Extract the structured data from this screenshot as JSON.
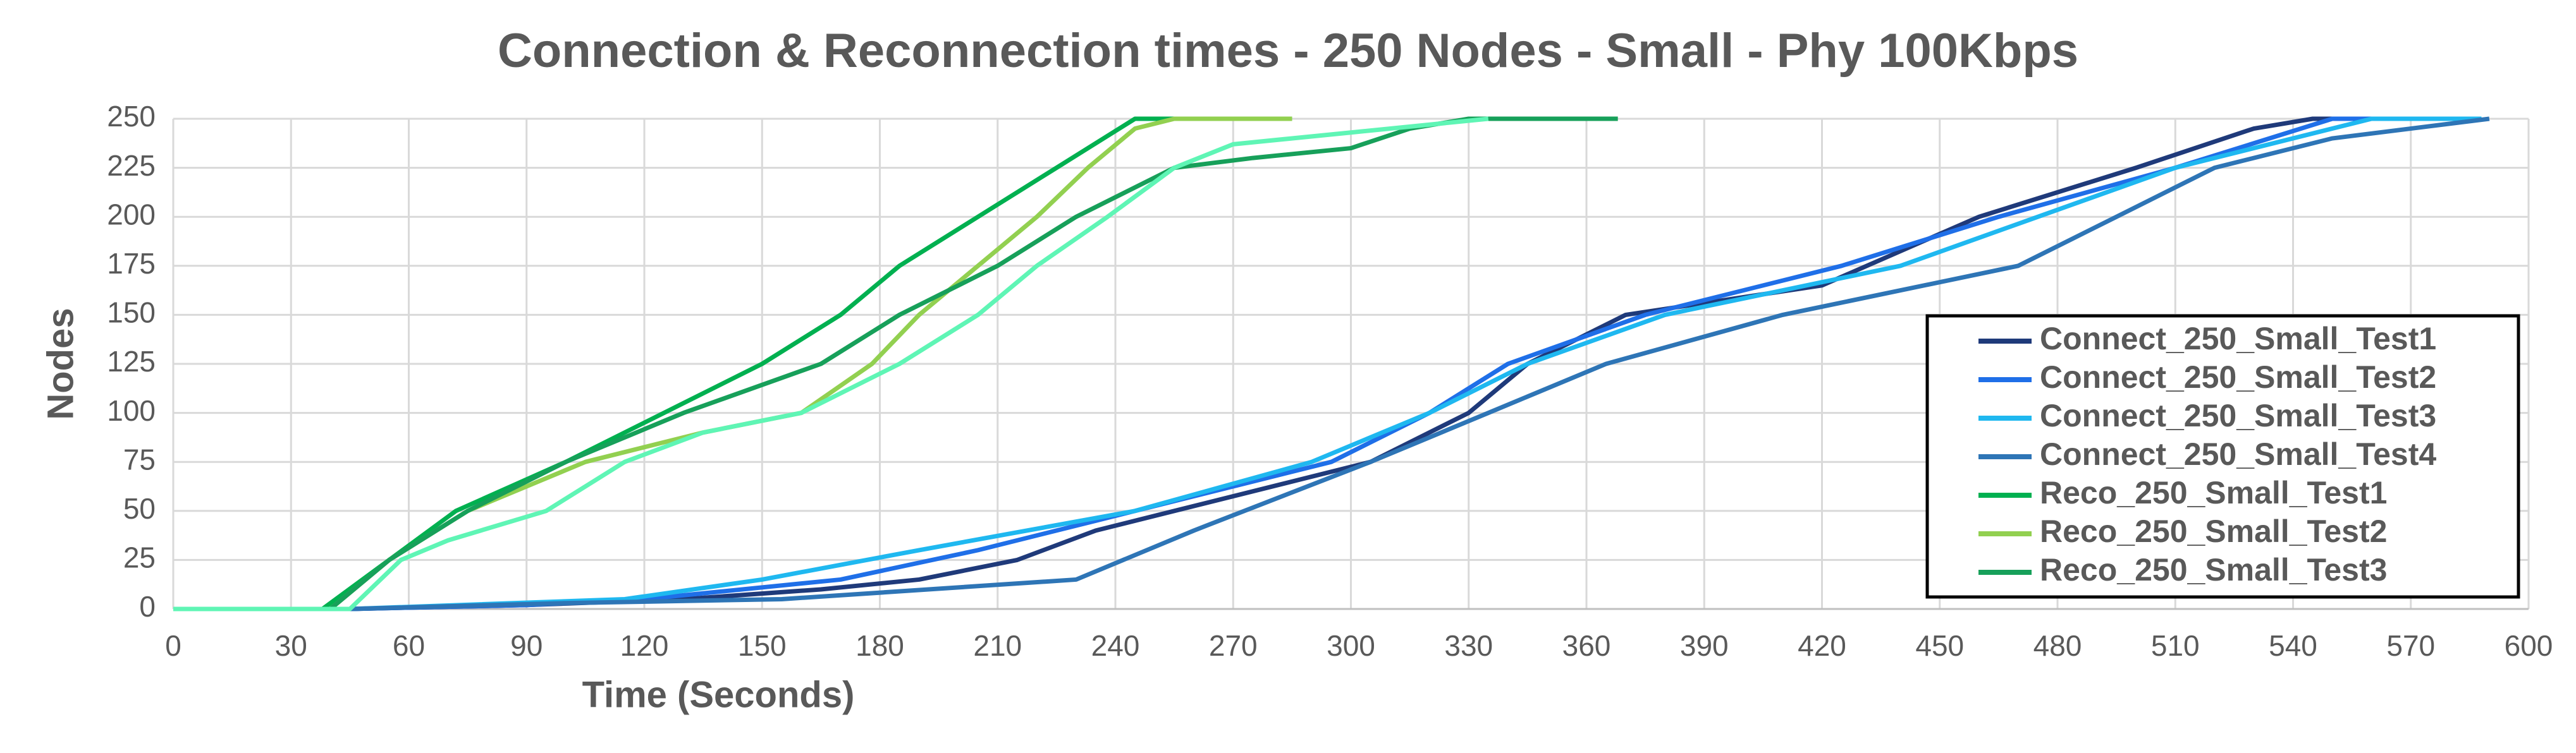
{
  "chart_data": {
    "type": "line",
    "title": "Connection & Reconnection times - 250 Nodes - Small - Phy 100Kbps",
    "x_label": "Time (Seconds)",
    "y_label": "Nodes",
    "xlim": [
      0,
      600
    ],
    "xticks": [
      0,
      30,
      60,
      90,
      120,
      150,
      180,
      210,
      240,
      270,
      300,
      330,
      360,
      390,
      420,
      450,
      480,
      510,
      540,
      570,
      600
    ],
    "ylim": [
      0,
      250
    ],
    "yticks": [
      0,
      25,
      50,
      75,
      100,
      125,
      150,
      175,
      200,
      225,
      250
    ],
    "grid": true,
    "legend": "lower right",
    "series": [
      {
        "name": "Connect_250_Small_Test1",
        "color": "#1f3a7a",
        "x": [
          0,
          45,
          90,
          130,
          165,
          190,
          215,
          235,
          255,
          305,
          330,
          345,
          370,
          420,
          460,
          500,
          530,
          545,
          556
        ],
        "values": [
          0,
          0,
          2,
          5,
          10,
          15,
          25,
          40,
          50,
          75,
          100,
          125,
          150,
          165,
          200,
          225,
          245,
          250,
          250
        ]
      },
      {
        "name": "Connect_250_Small_Test2",
        "color": "#1f6fe8",
        "x": [
          0,
          45,
          90,
          120,
          170,
          205,
          235,
          265,
          295,
          320,
          340,
          375,
          425,
          465,
          510,
          550,
          565
        ],
        "values": [
          0,
          0,
          2,
          5,
          15,
          30,
          45,
          60,
          75,
          100,
          125,
          150,
          175,
          200,
          225,
          250,
          250
        ]
      },
      {
        "name": "Connect_250_Small_Test3",
        "color": "#1fb8f0",
        "x": [
          0,
          45,
          115,
          150,
          190,
          245,
          290,
          320,
          345,
          380,
          440,
          475,
          510,
          560,
          588
        ],
        "values": [
          0,
          0,
          5,
          15,
          30,
          50,
          75,
          100,
          125,
          150,
          175,
          200,
          225,
          250,
          250
        ]
      },
      {
        "name": "Connect_250_Small_Test4",
        "color": "#2e75b6",
        "x": [
          0,
          45,
          100,
          155,
          230,
          260,
          305,
          335,
          365,
          410,
          470,
          495,
          520,
          550,
          590
        ],
        "values": [
          0,
          0,
          3,
          5,
          15,
          40,
          75,
          100,
          125,
          150,
          175,
          200,
          225,
          240,
          250
        ]
      },
      {
        "name": "Reco_250_Small_Test1",
        "color": "#00b050",
        "x": [
          0,
          38,
          55,
          72,
          100,
          125,
          150,
          170,
          185,
          205,
          225,
          245,
          285
        ],
        "values": [
          0,
          0,
          25,
          50,
          75,
          100,
          125,
          150,
          175,
          200,
          225,
          250,
          250
        ]
      },
      {
        "name": "Reco_250_Small_Test2",
        "color": "#92d050",
        "x": [
          0,
          40,
          55,
          75,
          105,
          135,
          160,
          178,
          190,
          205,
          220,
          233,
          245,
          255,
          285
        ],
        "values": [
          0,
          0,
          25,
          50,
          75,
          90,
          100,
          125,
          150,
          175,
          200,
          225,
          245,
          250,
          250
        ]
      },
      {
        "name": "Reco_250_Small_Test3",
        "color": "#17a05a",
        "x": [
          0,
          40,
          55,
          75,
          100,
          130,
          165,
          185,
          210,
          230,
          255,
          275,
          300,
          315,
          330,
          368
        ],
        "values": [
          0,
          0,
          25,
          50,
          75,
          100,
          125,
          150,
          175,
          200,
          225,
          230,
          235,
          245,
          250,
          250
        ]
      },
      {
        "color": "#5ff5b5",
        "x": [
          0,
          45,
          58,
          70,
          95,
          115,
          135,
          160,
          185,
          205,
          220,
          238,
          255,
          270,
          300,
          335
        ],
        "values": [
          0,
          0,
          25,
          35,
          50,
          75,
          90,
          100,
          125,
          150,
          175,
          200,
          225,
          237,
          243,
          250
        ]
      }
    ]
  }
}
